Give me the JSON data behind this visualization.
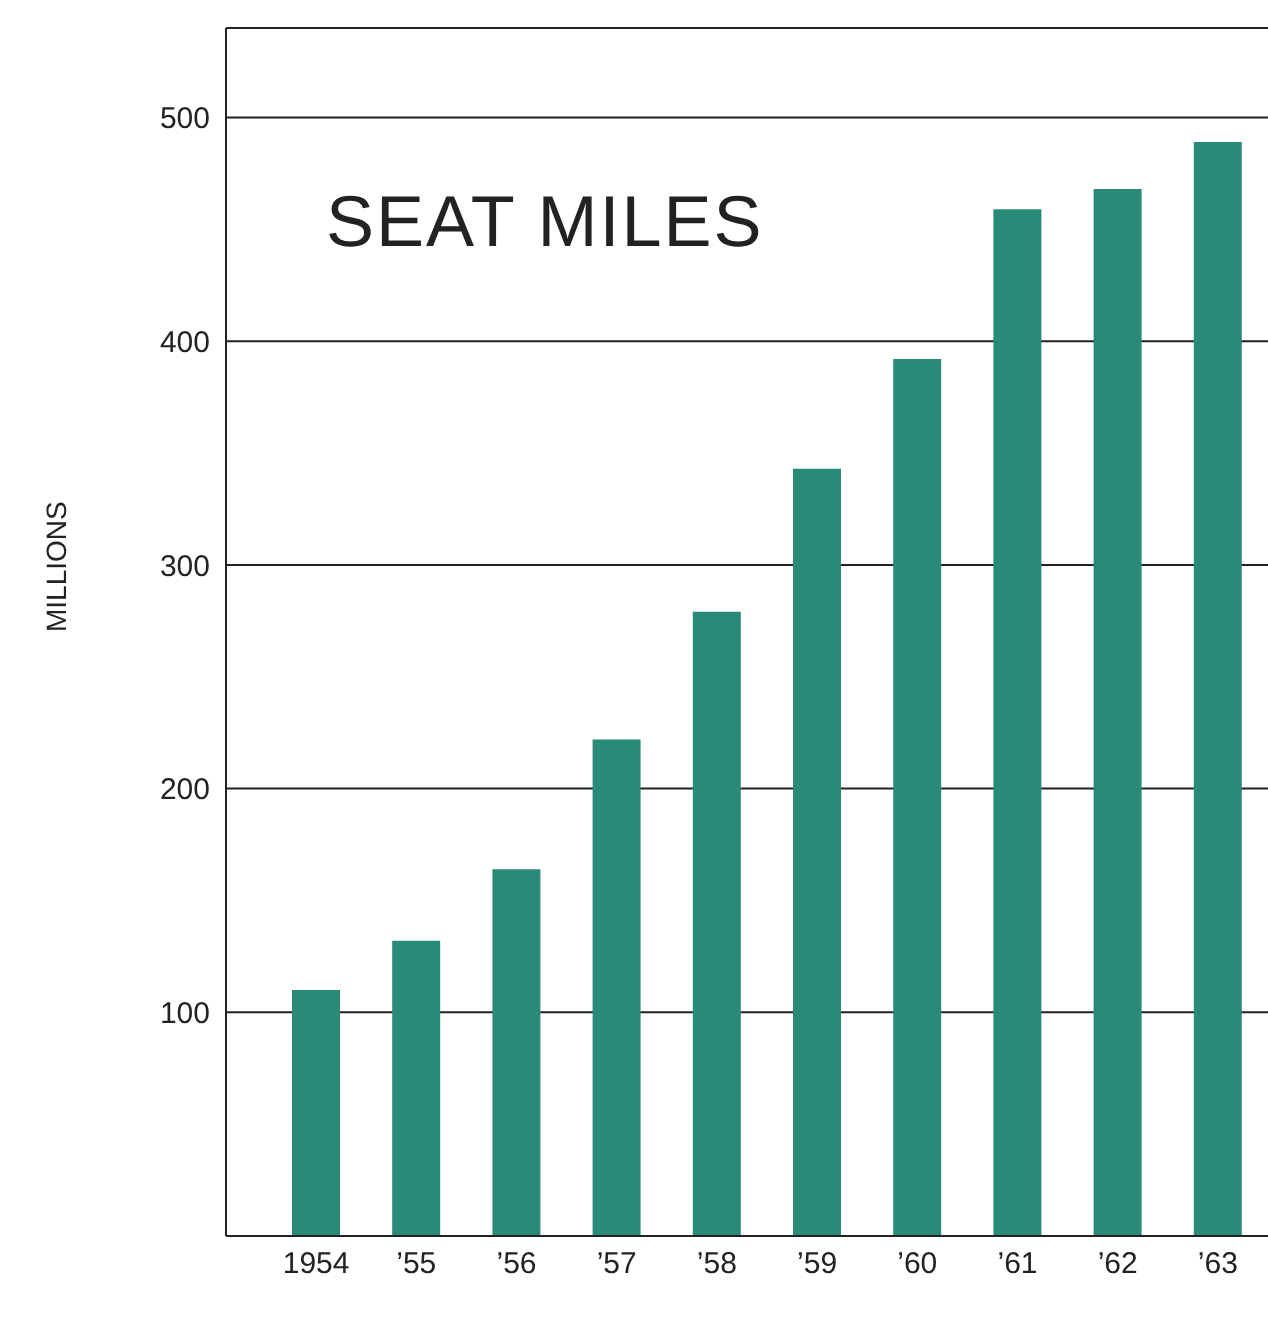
{
  "chart_data": {
    "type": "bar",
    "title": "SEAT MILES",
    "ylabel": "MILLIONS",
    "categories": [
      "1954",
      "’55",
      "’56",
      "’57",
      "’58",
      "’59",
      "’60",
      "’61",
      "’62",
      "’63"
    ],
    "values": [
      110,
      132,
      164,
      222,
      279,
      343,
      392,
      459,
      468,
      489
    ],
    "color": "#2a8a78",
    "ylim": [
      0,
      540
    ],
    "yticks": [
      100,
      200,
      300,
      400,
      500
    ],
    "grid": "y"
  }
}
